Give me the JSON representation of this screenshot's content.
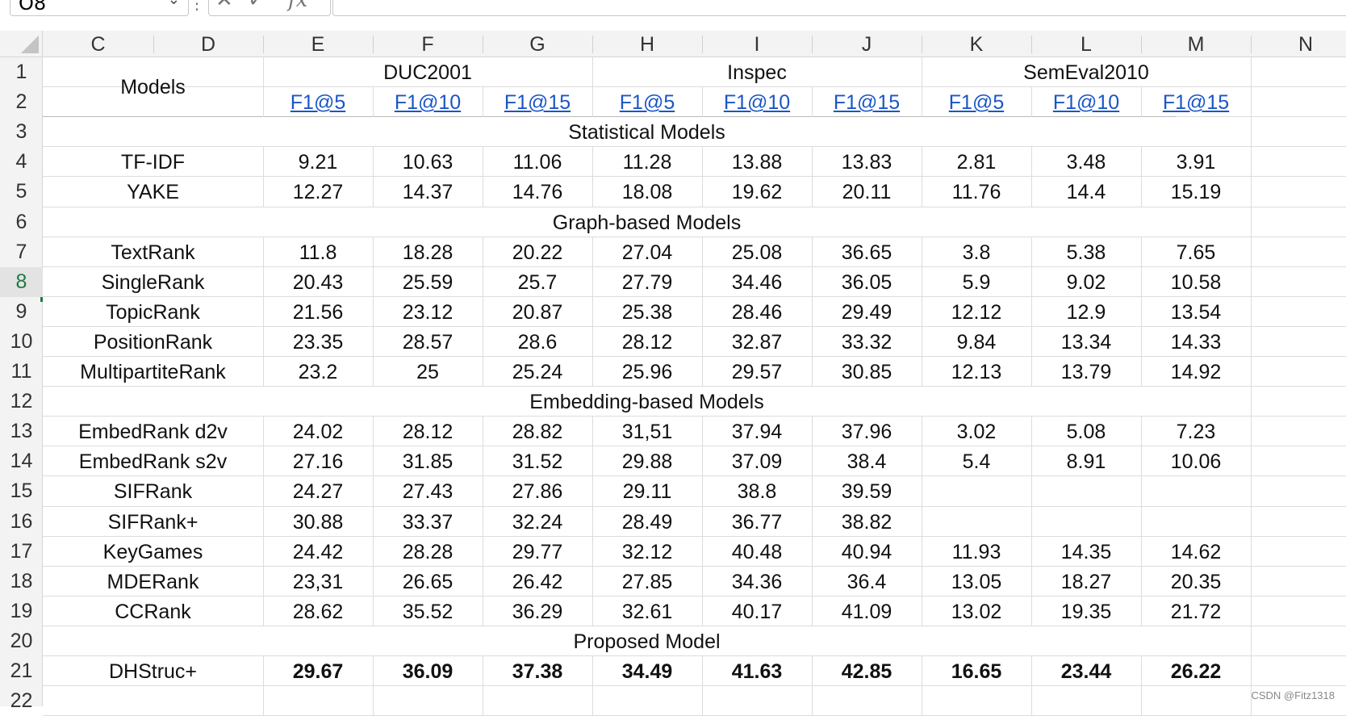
{
  "formula_bar": {
    "cell_ref": "O8",
    "fx_label": "fx"
  },
  "columns": [
    "C",
    "D",
    "E",
    "F",
    "G",
    "H",
    "I",
    "J",
    "K",
    "L",
    "M",
    "N"
  ],
  "rows": [
    "1",
    "2",
    "3",
    "4",
    "5",
    "6",
    "7",
    "8",
    "9",
    "10",
    "11",
    "12",
    "13",
    "14",
    "15",
    "16",
    "17",
    "18",
    "19",
    "20",
    "21",
    "22"
  ],
  "active_row": "8",
  "table": {
    "models_header": "Models",
    "datasets": [
      "DUC2001",
      "Inspec",
      "SemEval2010"
    ],
    "metrics": [
      "F1@5",
      "F1@10",
      "F1@15",
      "F1@5",
      "F1@10",
      "F1@15",
      "F1@5",
      "F1@10",
      "F1@15"
    ],
    "sections": [
      "Statistical Models",
      "Graph-based Models",
      "Embedding-based Models",
      "Proposed Model"
    ],
    "models": [
      {
        "name": "TF-IDF",
        "values": [
          "9.21",
          "10.63",
          "11.06",
          "11.28",
          "13.88",
          "13.83",
          "2.81",
          "3.48",
          "3.91"
        ]
      },
      {
        "name": "YAKE",
        "values": [
          "12.27",
          "14.37",
          "14.76",
          "18.08",
          "19.62",
          "20.11",
          "11.76",
          "14.4",
          "15.19"
        ]
      },
      {
        "name": "TextRank",
        "values": [
          "11.8",
          "18.28",
          "20.22",
          "27.04",
          "25.08",
          "36.65",
          "3.8",
          "5.38",
          "7.65"
        ]
      },
      {
        "name": "SingleRank",
        "values": [
          "20.43",
          "25.59",
          "25.7",
          "27.79",
          "34.46",
          "36.05",
          "5.9",
          "9.02",
          "10.58"
        ]
      },
      {
        "name": "TopicRank",
        "values": [
          "21.56",
          "23.12",
          "20.87",
          "25.38",
          "28.46",
          "29.49",
          "12.12",
          "12.9",
          "13.54"
        ]
      },
      {
        "name": "PositionRank",
        "values": [
          "23.35",
          "28.57",
          "28.6",
          "28.12",
          "32.87",
          "33.32",
          "9.84",
          "13.34",
          "14.33"
        ]
      },
      {
        "name": "MultipartiteRank",
        "values": [
          "23.2",
          "25",
          "25.24",
          "25.96",
          "29.57",
          "30.85",
          "12.13",
          "13.79",
          "14.92"
        ]
      },
      {
        "name": "EmbedRank d2v",
        "values": [
          "24.02",
          "28.12",
          "28.82",
          "31,51",
          "37.94",
          "37.96",
          "3.02",
          "5.08",
          "7.23"
        ]
      },
      {
        "name": "EmbedRank s2v",
        "values": [
          "27.16",
          "31.85",
          "31.52",
          "29.88",
          "37.09",
          "38.4",
          "5.4",
          "8.91",
          "10.06"
        ]
      },
      {
        "name": "SIFRank",
        "values": [
          "24.27",
          "27.43",
          "27.86",
          "29.11",
          "38.8",
          "39.59",
          "",
          "",
          ""
        ]
      },
      {
        "name": "SIFRank+",
        "values": [
          "30.88",
          "33.37",
          "32.24",
          "28.49",
          "36.77",
          "38.82",
          "",
          "",
          ""
        ]
      },
      {
        "name": "KeyGames",
        "values": [
          "24.42",
          "28.28",
          "29.77",
          "32.12",
          "40.48",
          "40.94",
          "11.93",
          "14.35",
          "14.62"
        ]
      },
      {
        "name": "MDERank",
        "values": [
          "23,31",
          "26.65",
          "26.42",
          "27.85",
          "34.36",
          "36.4",
          "13.05",
          "18.27",
          "20.35"
        ]
      },
      {
        "name": "CCRank",
        "values": [
          "28.62",
          "35.52",
          "36.29",
          "32.61",
          "40.17",
          "41.09",
          "13.02",
          "19.35",
          "21.72"
        ]
      },
      {
        "name": "DHStruc+",
        "values": [
          "29.67",
          "36.09",
          "37.38",
          "34.49",
          "41.63",
          "42.85",
          "16.65",
          "23.44",
          "26.22"
        ]
      }
    ]
  },
  "watermark": "CSDN @Fitz1318"
}
